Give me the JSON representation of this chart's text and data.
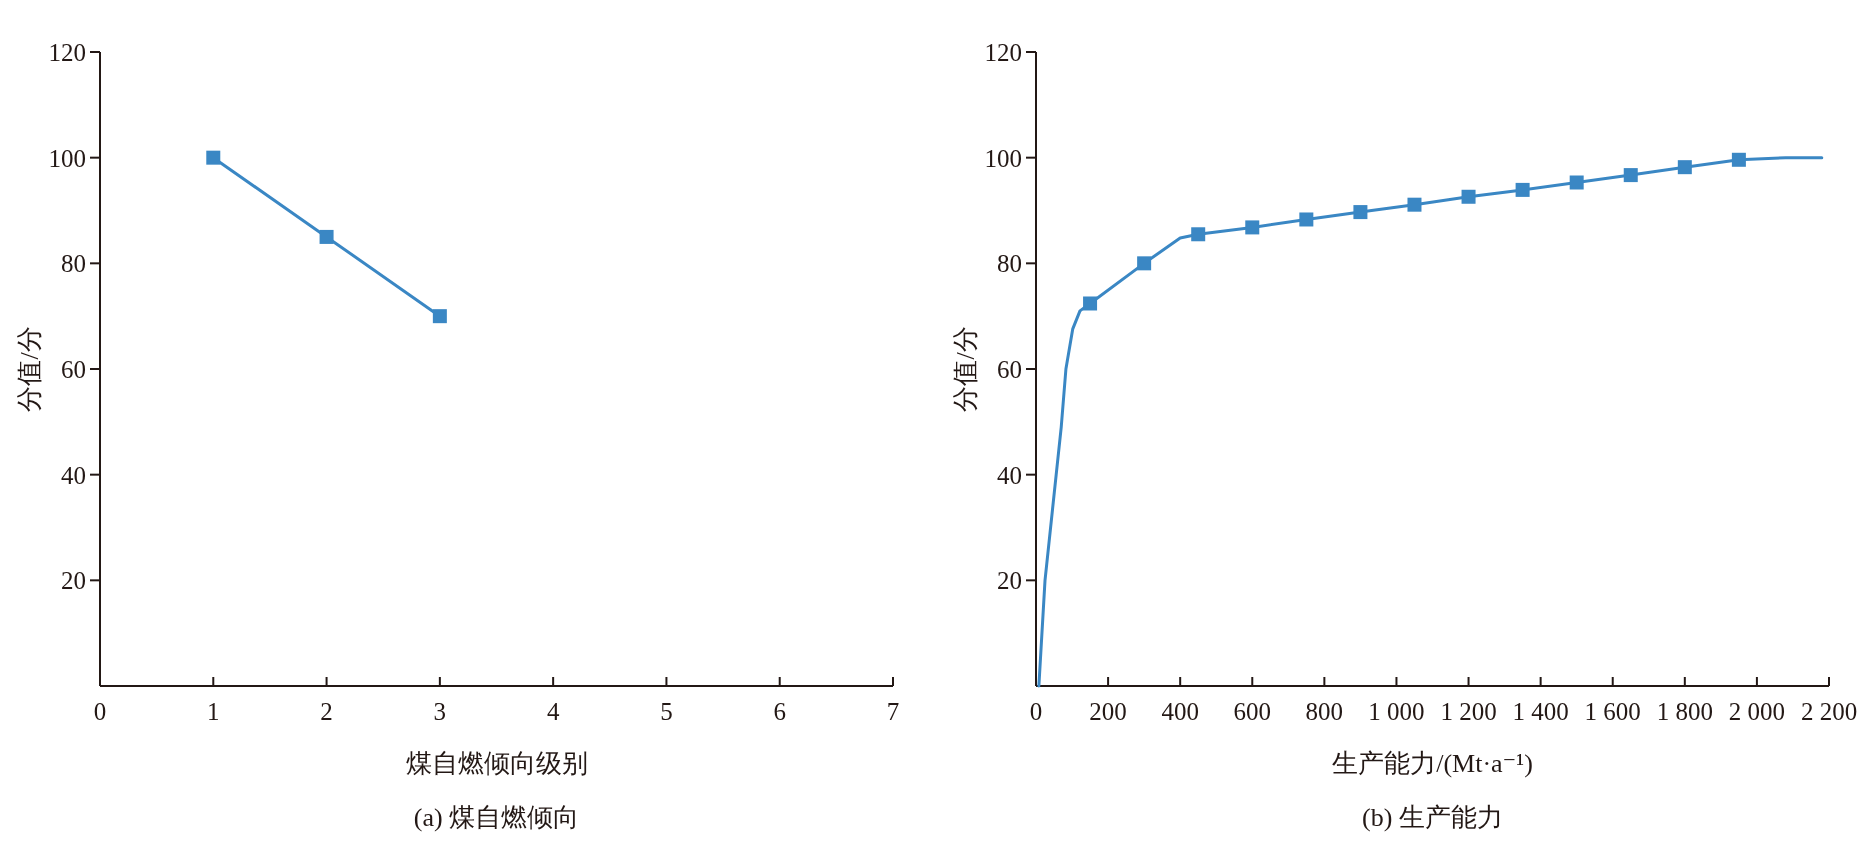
{
  "chart_data": [
    {
      "type": "line",
      "title": "(a) 煤自燃倾向",
      "xlabel": "煤自燃倾向级别",
      "ylabel": "分值/分",
      "xlim": [
        0,
        7
      ],
      "xticks": [
        0,
        1,
        2,
        3,
        4,
        5,
        6,
        7
      ],
      "ylim": [
        0,
        120
      ],
      "yticks": [
        20,
        40,
        60,
        80,
        100,
        120
      ],
      "marker": "square",
      "series": [
        {
          "color": "#3a87c4",
          "x": [
            1,
            2,
            3
          ],
          "values": [
            100,
            85,
            70
          ]
        }
      ]
    },
    {
      "type": "line",
      "title": "(b) 生产能力",
      "xlabel": "生产能力/(Mt·a⁻¹)",
      "ylabel": "分值/分",
      "xlim": [
        0,
        2200
      ],
      "xticks": [
        0,
        200,
        400,
        600,
        800,
        {
          "value": 1000,
          "label": "1 000"
        },
        {
          "value": 1200,
          "label": "1 200"
        },
        {
          "value": 1400,
          "label": "1 400"
        },
        {
          "value": 1600,
          "label": "1 600"
        },
        {
          "value": 1800,
          "label": "1 800"
        },
        {
          "value": 2000,
          "label": "2 000"
        },
        {
          "value": 2200,
          "label": "2 200"
        }
      ],
      "ylim": [
        0,
        120
      ],
      "yticks": [
        20,
        40,
        60,
        80,
        100,
        120
      ],
      "series": [
        {
          "color": "#3a87c4",
          "marker": "none",
          "x": [
            8,
            25,
            56,
            70,
            83,
            102,
            122,
            150,
            300,
            400,
            450,
            600,
            750,
            900,
            1050,
            1200,
            1350,
            1500,
            1650,
            1800,
            1950,
            2080,
            2180
          ],
          "values": [
            0,
            20,
            40,
            49,
            60,
            67.6,
            71,
            72.4,
            80,
            84.8,
            85.5,
            86.8,
            88.3,
            89.7,
            91.1,
            92.6,
            93.9,
            95.3,
            96.7,
            98.2,
            99.6,
            100,
            100
          ]
        },
        {
          "type": "scatter",
          "marker": "square",
          "color": "#3a87c4",
          "x": [
            150,
            300,
            450,
            600,
            750,
            900,
            1050,
            1200,
            1350,
            1500,
            1650,
            1800,
            1950
          ],
          "values": [
            72.4,
            80,
            85.5,
            86.8,
            88.3,
            89.7,
            91.1,
            92.6,
            93.9,
            95.3,
            96.7,
            98.2,
            99.6
          ]
        }
      ]
    }
  ]
}
